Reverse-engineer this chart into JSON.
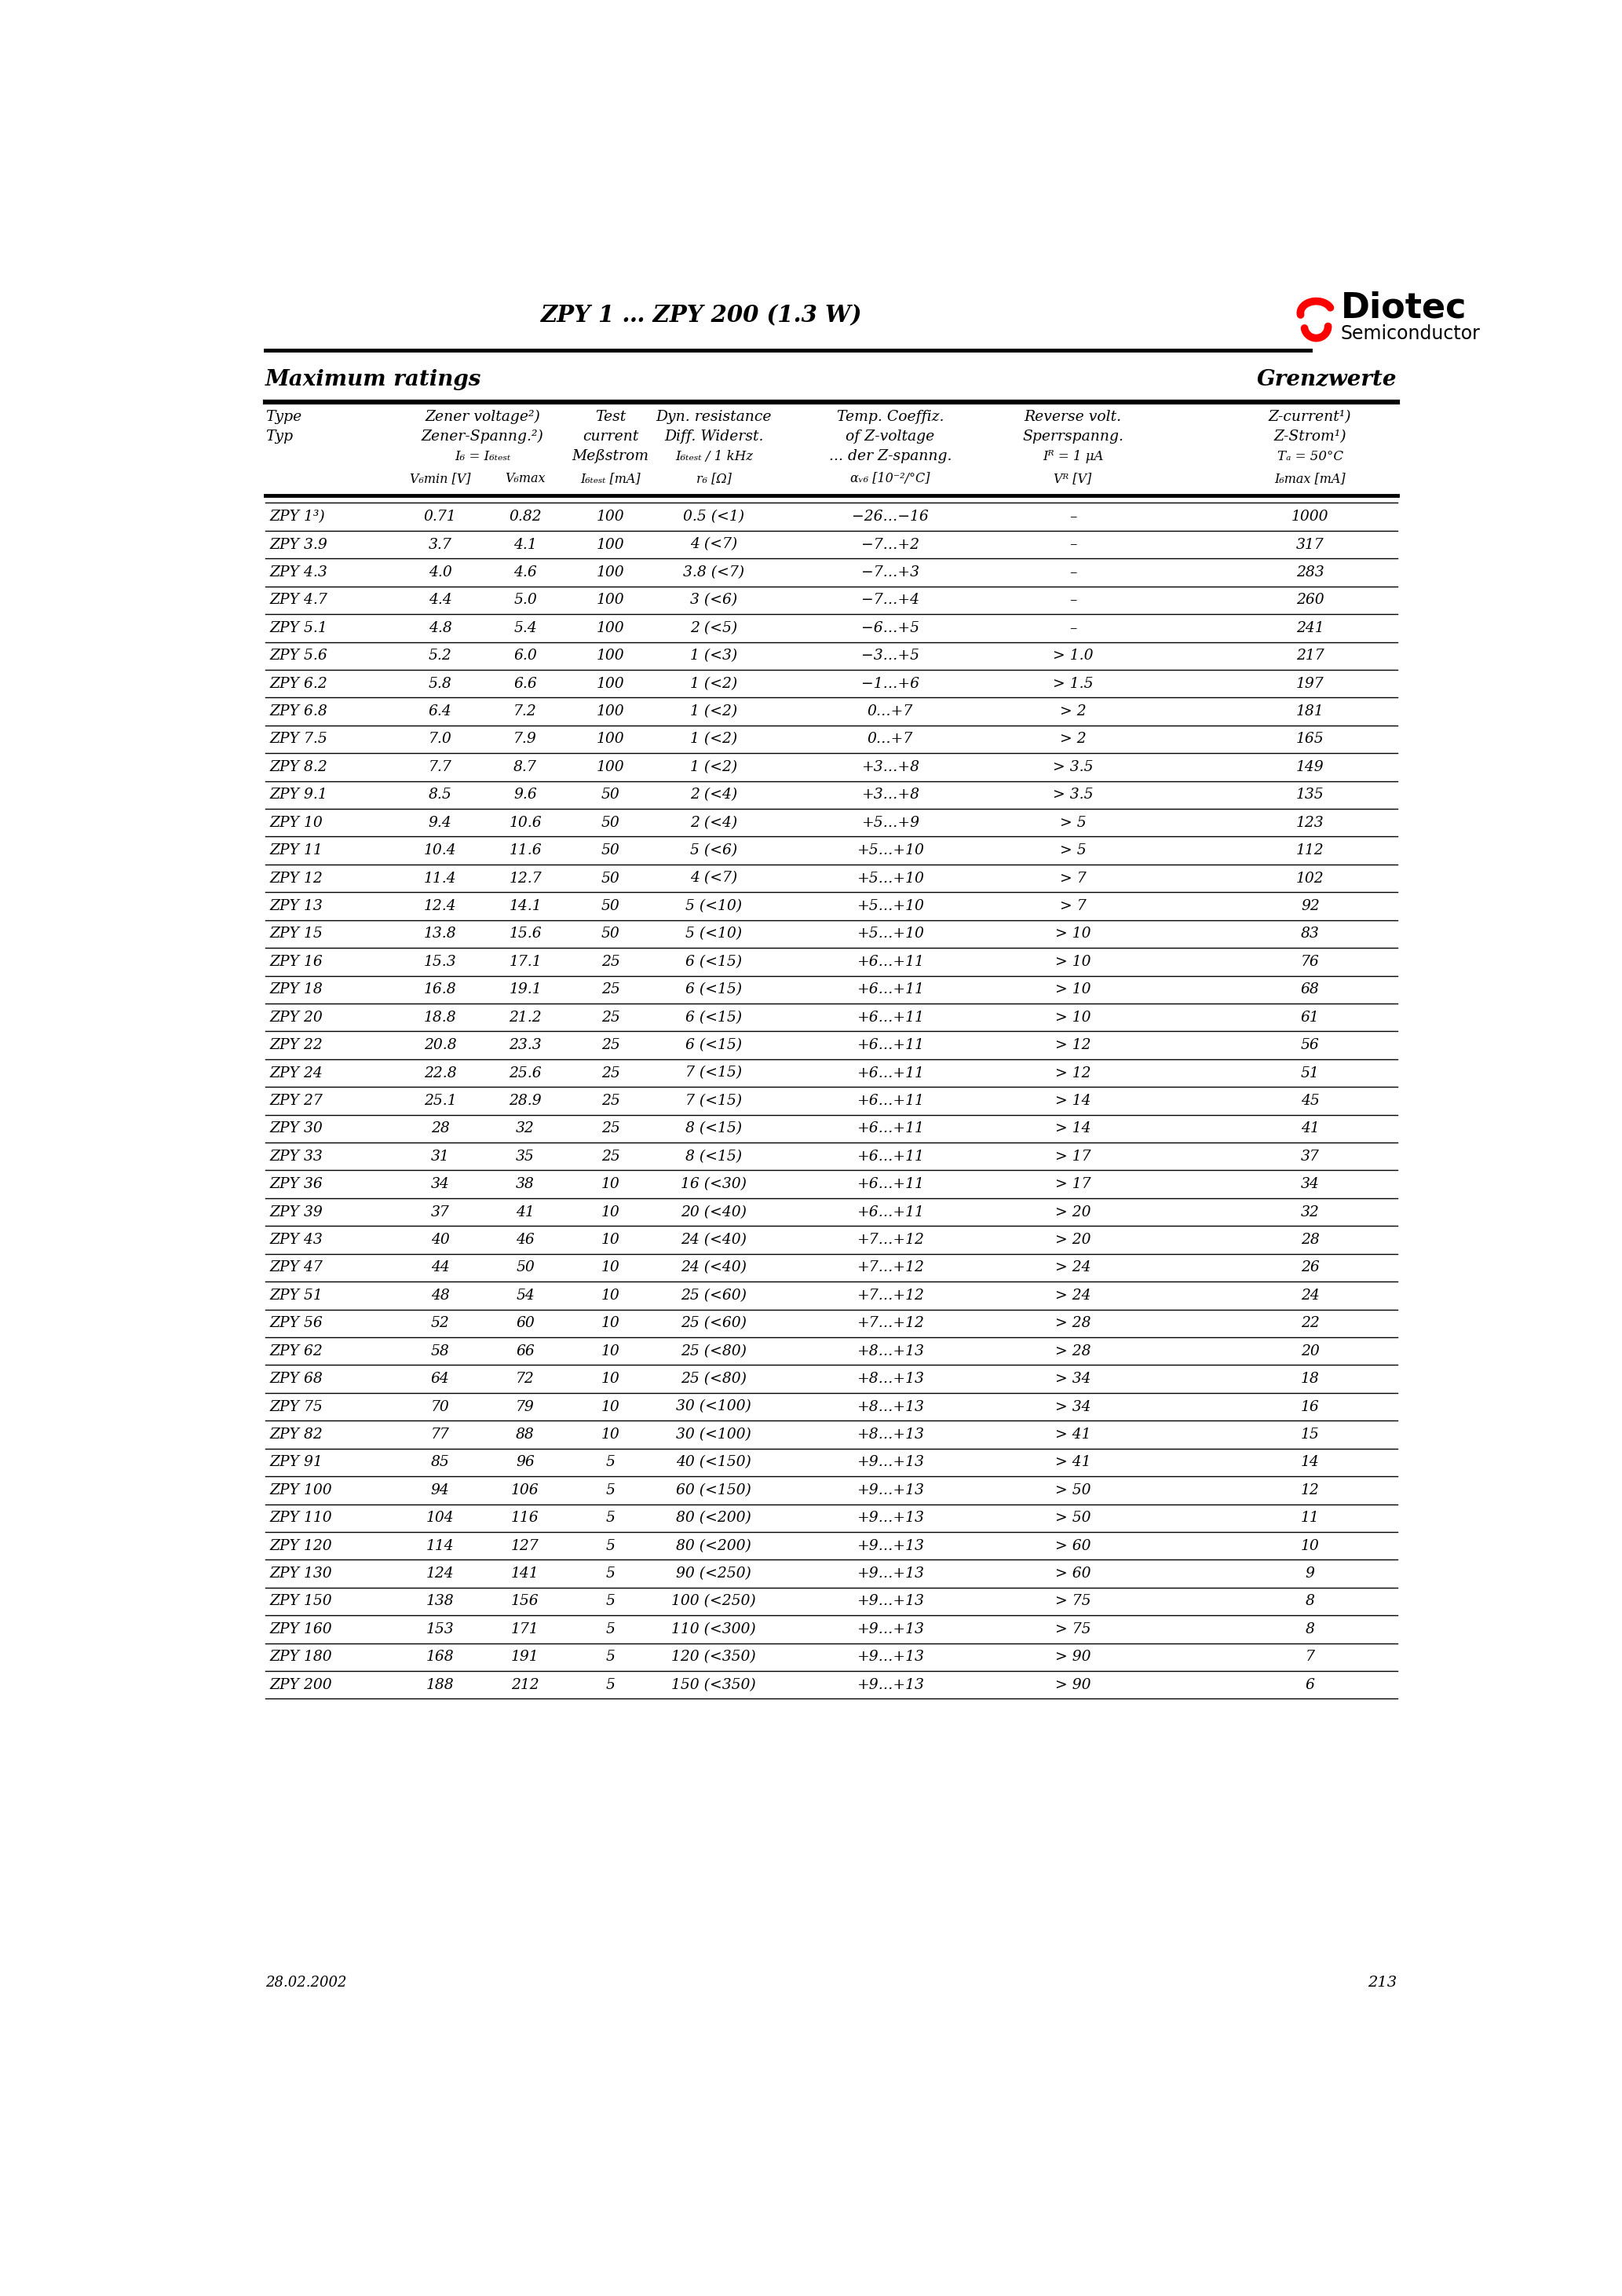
{
  "title": "ZPY 1 … ZPY 200 (1.3 W)",
  "page_number": "213",
  "date": "28.02.2002",
  "section_title_left": "Maximum ratings",
  "section_title_right": "Grenzwerte",
  "rows": [
    [
      "ZPY 1³)",
      "0.71",
      "0.82",
      "100",
      "0.5 (<1)",
      "−26…−16",
      "–",
      "1000"
    ],
    [
      "ZPY 3.9",
      "3.7",
      "4.1",
      "100",
      "4 (<7)",
      "−7…+2",
      "–",
      "317"
    ],
    [
      "ZPY 4.3",
      "4.0",
      "4.6",
      "100",
      "3.8 (<7)",
      "−7…+3",
      "–",
      "283"
    ],
    [
      "ZPY 4.7",
      "4.4",
      "5.0",
      "100",
      "3 (<6)",
      "−7…+4",
      "–",
      "260"
    ],
    [
      "ZPY 5.1",
      "4.8",
      "5.4",
      "100",
      "2 (<5)",
      "−6…+5",
      "–",
      "241"
    ],
    [
      "ZPY 5.6",
      "5.2",
      "6.0",
      "100",
      "1 (<3)",
      "−3…+5",
      "> 1.0",
      "217"
    ],
    [
      "ZPY 6.2",
      "5.8",
      "6.6",
      "100",
      "1 (<2)",
      "−1…+6",
      "> 1.5",
      "197"
    ],
    [
      "ZPY 6.8",
      "6.4",
      "7.2",
      "100",
      "1 (<2)",
      "0…+7",
      "> 2",
      "181"
    ],
    [
      "ZPY 7.5",
      "7.0",
      "7.9",
      "100",
      "1 (<2)",
      "0…+7",
      "> 2",
      "165"
    ],
    [
      "ZPY 8.2",
      "7.7",
      "8.7",
      "100",
      "1 (<2)",
      "+3…+8",
      "> 3.5",
      "149"
    ],
    [
      "ZPY 9.1",
      "8.5",
      "9.6",
      "50",
      "2 (<4)",
      "+3…+8",
      "> 3.5",
      "135"
    ],
    [
      "ZPY 10",
      "9.4",
      "10.6",
      "50",
      "2 (<4)",
      "+5…+9",
      "> 5",
      "123"
    ],
    [
      "ZPY 11",
      "10.4",
      "11.6",
      "50",
      "5 (<6)",
      "+5…+10",
      "> 5",
      "112"
    ],
    [
      "ZPY 12",
      "11.4",
      "12.7",
      "50",
      "4 (<7)",
      "+5…+10",
      "> 7",
      "102"
    ],
    [
      "ZPY 13",
      "12.4",
      "14.1",
      "50",
      "5 (<10)",
      "+5…+10",
      "> 7",
      "92"
    ],
    [
      "ZPY 15",
      "13.8",
      "15.6",
      "50",
      "5 (<10)",
      "+5…+10",
      "> 10",
      "83"
    ],
    [
      "ZPY 16",
      "15.3",
      "17.1",
      "25",
      "6 (<15)",
      "+6…+11",
      "> 10",
      "76"
    ],
    [
      "ZPY 18",
      "16.8",
      "19.1",
      "25",
      "6 (<15)",
      "+6…+11",
      "> 10",
      "68"
    ],
    [
      "ZPY 20",
      "18.8",
      "21.2",
      "25",
      "6 (<15)",
      "+6…+11",
      "> 10",
      "61"
    ],
    [
      "ZPY 22",
      "20.8",
      "23.3",
      "25",
      "6 (<15)",
      "+6…+11",
      "> 12",
      "56"
    ],
    [
      "ZPY 24",
      "22.8",
      "25.6",
      "25",
      "7 (<15)",
      "+6…+11",
      "> 12",
      "51"
    ],
    [
      "ZPY 27",
      "25.1",
      "28.9",
      "25",
      "7 (<15)",
      "+6…+11",
      "> 14",
      "45"
    ],
    [
      "ZPY 30",
      "28",
      "32",
      "25",
      "8 (<15)",
      "+6…+11",
      "> 14",
      "41"
    ],
    [
      "ZPY 33",
      "31",
      "35",
      "25",
      "8 (<15)",
      "+6…+11",
      "> 17",
      "37"
    ],
    [
      "ZPY 36",
      "34",
      "38",
      "10",
      "16 (<30)",
      "+6…+11",
      "> 17",
      "34"
    ],
    [
      "ZPY 39",
      "37",
      "41",
      "10",
      "20 (<40)",
      "+6…+11",
      "> 20",
      "32"
    ],
    [
      "ZPY 43",
      "40",
      "46",
      "10",
      "24 (<40)",
      "+7…+12",
      "> 20",
      "28"
    ],
    [
      "ZPY 47",
      "44",
      "50",
      "10",
      "24 (<40)",
      "+7…+12",
      "> 24",
      "26"
    ],
    [
      "ZPY 51",
      "48",
      "54",
      "10",
      "25 (<60)",
      "+7…+12",
      "> 24",
      "24"
    ],
    [
      "ZPY 56",
      "52",
      "60",
      "10",
      "25 (<60)",
      "+7…+12",
      "> 28",
      "22"
    ],
    [
      "ZPY 62",
      "58",
      "66",
      "10",
      "25 (<80)",
      "+8…+13",
      "> 28",
      "20"
    ],
    [
      "ZPY 68",
      "64",
      "72",
      "10",
      "25 (<80)",
      "+8…+13",
      "> 34",
      "18"
    ],
    [
      "ZPY 75",
      "70",
      "79",
      "10",
      "30 (<100)",
      "+8…+13",
      "> 34",
      "16"
    ],
    [
      "ZPY 82",
      "77",
      "88",
      "10",
      "30 (<100)",
      "+8…+13",
      "> 41",
      "15"
    ],
    [
      "ZPY 91",
      "85",
      "96",
      "5",
      "40 (<150)",
      "+9…+13",
      "> 41",
      "14"
    ],
    [
      "ZPY 100",
      "94",
      "106",
      "5",
      "60 (<150)",
      "+9…+13",
      "> 50",
      "12"
    ],
    [
      "ZPY 110",
      "104",
      "116",
      "5",
      "80 (<200)",
      "+9…+13",
      "> 50",
      "11"
    ],
    [
      "ZPY 120",
      "114",
      "127",
      "5",
      "80 (<200)",
      "+9…+13",
      "> 60",
      "10"
    ],
    [
      "ZPY 130",
      "124",
      "141",
      "5",
      "90 (<250)",
      "+9…+13",
      "> 60",
      "9"
    ],
    [
      "ZPY 150",
      "138",
      "156",
      "5",
      "100 (<250)",
      "+9…+13",
      "> 75",
      "8"
    ],
    [
      "ZPY 160",
      "153",
      "171",
      "5",
      "110 (<300)",
      "+9…+13",
      "> 75",
      "8"
    ],
    [
      "ZPY 180",
      "168",
      "191",
      "5",
      "120 (<350)",
      "+9…+13",
      "> 90",
      "7"
    ],
    [
      "ZPY 200",
      "188",
      "212",
      "5",
      "150 (<350)",
      "+9…+13",
      "> 90",
      "6"
    ]
  ]
}
